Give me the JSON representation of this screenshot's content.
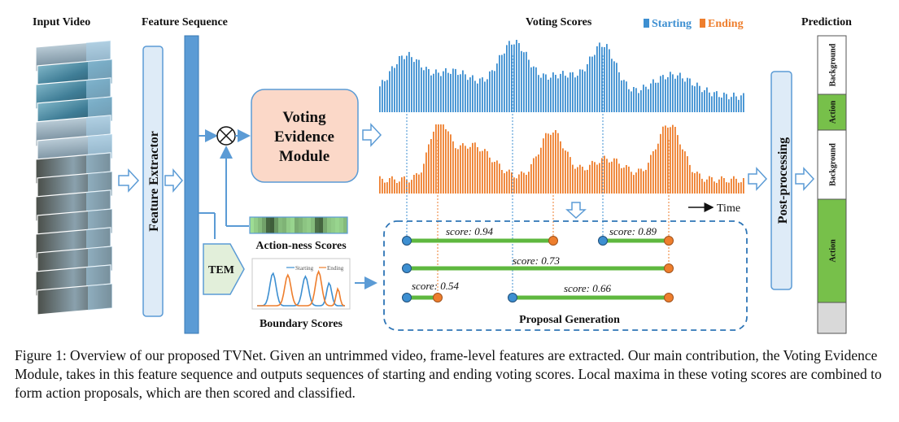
{
  "headers": {
    "input_video": "Input Video",
    "feature_sequence": "Feature Sequence",
    "voting_scores": "Voting Scores",
    "prediction": "Prediction"
  },
  "legend": {
    "starting": "Starting",
    "ending": "Ending"
  },
  "colors": {
    "starting": "#3d8fd1",
    "ending": "#ee7e2d",
    "arrow": "#5b9bd5",
    "module_fill": "#fbd8c8",
    "panel_fill": "#deebf7",
    "green_line": "#5fb83f",
    "action_cell": "#77c04a",
    "dashed_box": "#2e75b6"
  },
  "labels": {
    "feature_extractor": "Feature Extractor",
    "voting_evidence_module": [
      "Voting",
      "Evidence",
      "Module"
    ],
    "actionness_scores": "Action-ness Scores",
    "tem": "TEM",
    "boundary_scores": "Boundary Scores",
    "time": "Time",
    "proposal_generation": "Proposal Generation",
    "post_processing": "Post-processing",
    "mini_legend": {
      "starting": "Starting",
      "ending": "Ending"
    }
  },
  "proposals": [
    {
      "score": "score: 0.94"
    },
    {
      "score": "score: 0.89"
    },
    {
      "score": "score: 0.73"
    },
    {
      "score": "score: 0.54"
    },
    {
      "score": "score: 0.66"
    }
  ],
  "prediction_segments": [
    {
      "label": "Background",
      "type": "background"
    },
    {
      "label": "Action",
      "type": "action"
    },
    {
      "label": "Background",
      "type": "background"
    },
    {
      "label": "Action",
      "type": "action"
    },
    {
      "label": "",
      "type": "empty"
    }
  ],
  "caption": "Figure 1: Overview of our proposed TVNet. Given an untrimmed video, frame-level features are extracted. Our main contribution, the Voting Evidence Module, takes in this feature sequence and outputs sequences of starting and ending voting scores. Local maxima in these voting scores are combined to form action proposals, which are then scored and classified."
}
